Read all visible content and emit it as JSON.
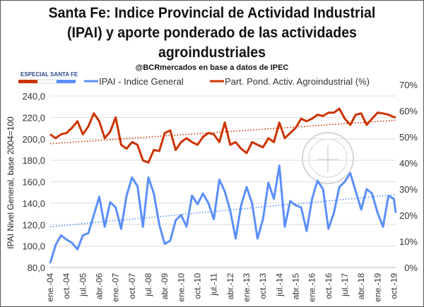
{
  "header": {
    "title_lines": [
      "Santa Fe: Indice Provincial de Actividad Industrial",
      "(IPAI) y aporte ponderado de las actividades",
      "agroindustriales"
    ],
    "source": "@BCRmercados en base a datos de IPEC",
    "badge": "ESPECIAL SANTA FE"
  },
  "chart_data": {
    "type": "line",
    "title": "Santa Fe: Indice Provincial de Actividad Industrial (IPAI) y aporte ponderado de las actividades agroindustriales",
    "ylabel": "IPAI Nivel General, base 2004=100",
    "ylim": [
      80,
      240
    ],
    "y2lim": [
      0,
      70
    ],
    "yticks": [
      "80,0",
      "100,0",
      "120,0",
      "140,0",
      "160,0",
      "180,0",
      "200,0",
      "220,0",
      "240,0"
    ],
    "y2ticks": [
      "0%",
      "10%",
      "20%",
      "30%",
      "40%",
      "50%",
      "60%",
      "70%"
    ],
    "xticks": [
      "ene.-04",
      "oct.-04",
      "jul.-05",
      "abr.-06",
      "ene.-07",
      "oct.-07",
      "jul.-08",
      "abr.-09",
      "ene.-10",
      "oct.-10",
      "jul.-11",
      "abr.-12",
      "ene.-13",
      "oct.-13",
      "jul.-14",
      "abr.-15",
      "ene.-16",
      "oct.-16",
      "jul.-17",
      "abr.-18",
      "ene.-19",
      "oct.-19"
    ],
    "x_unit": "months since ene.-04",
    "xlim": [
      0,
      190
    ],
    "grid": true,
    "legend_position": "top",
    "series": [
      {
        "name": "IPAI - Indice General",
        "axis": "left",
        "color": "#5b8ff9",
        "values": [
          84,
          101,
          110,
          106,
          103,
          97,
          110,
          112,
          129,
          146,
          118,
          141,
          136,
          116,
          147,
          164,
          156,
          118,
          164,
          149,
          120,
          102,
          105,
          124,
          129,
          118,
          147,
          139,
          149,
          140,
          125,
          162,
          151,
          133,
          107,
          138,
          155,
          140,
          107,
          125,
          159,
          144,
          175,
          118,
          142,
          138,
          136,
          114,
          144,
          161,
          153,
          116,
          131,
          155,
          160,
          168,
          151,
          134,
          153,
          149,
          131,
          118,
          147,
          144,
          131
        ],
        "trend": [
          118,
          148
        ]
      },
      {
        "name": "Part. Pond. Activ. Agroindustrial (%)",
        "axis": "right",
        "color": "#cc3300",
        "values": [
          51,
          49.5,
          51,
          51.5,
          53.5,
          56,
          51,
          54,
          59,
          56,
          49.5,
          52,
          57.5,
          47,
          45.5,
          48,
          47,
          41,
          40.2,
          45,
          44.6,
          51.5,
          52.5,
          45,
          48,
          49.5,
          48,
          47,
          50,
          51.5,
          51,
          48,
          55.5,
          47,
          48,
          45.5,
          43.8,
          48,
          47,
          46,
          49.5,
          48,
          55.5,
          49.5,
          51.5,
          53.5,
          57,
          56,
          57,
          58.5,
          58,
          59.3,
          59.3,
          60.8,
          57,
          54.6,
          58.5,
          59,
          54.6,
          57,
          59.3,
          59,
          58.5,
          57.6,
          57.5
        ],
        "trend": [
          47.4,
          56.4
        ]
      }
    ]
  }
}
